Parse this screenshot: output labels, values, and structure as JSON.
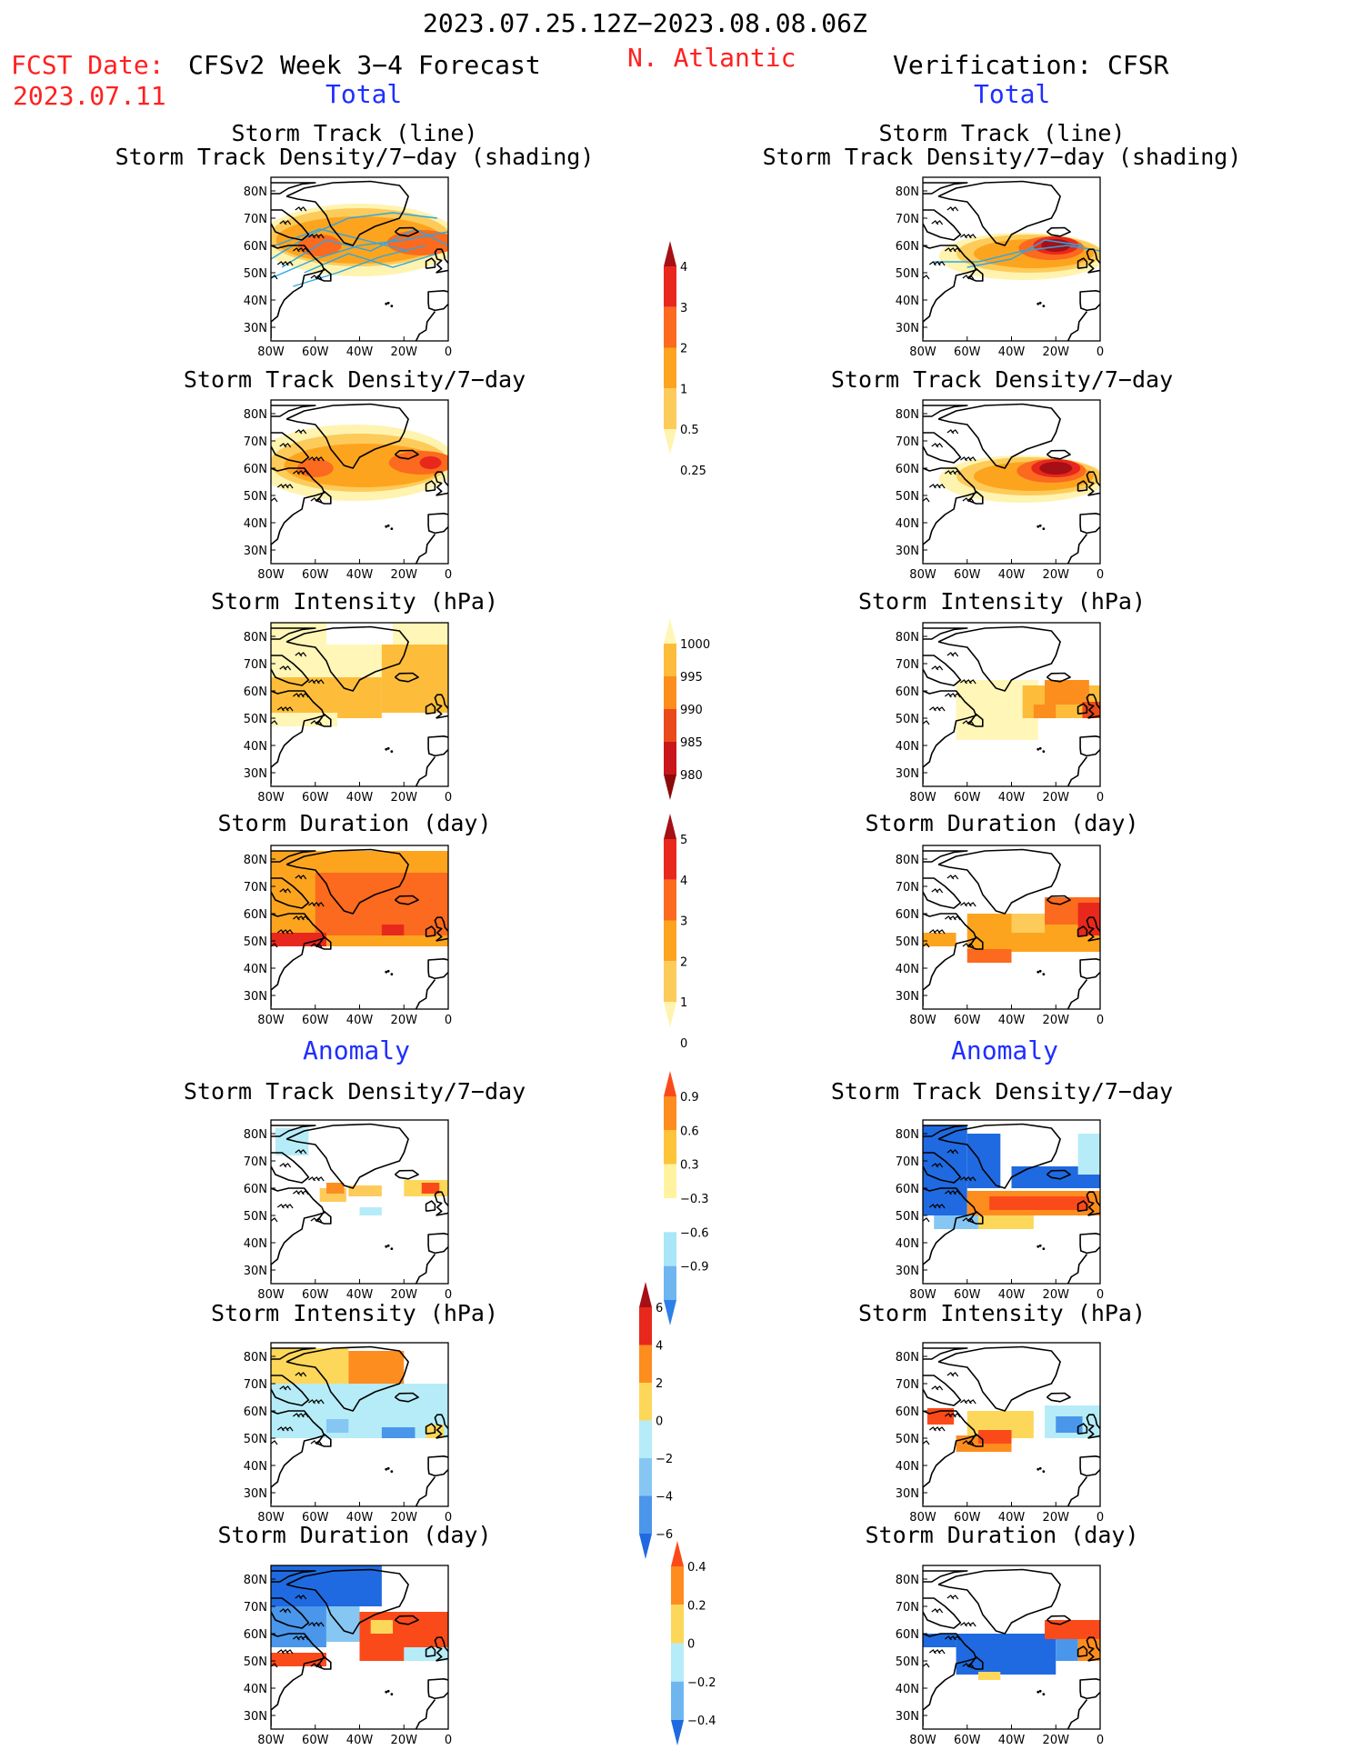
{
  "header": {
    "period": "2023.07.25.12Z−2023.08.08.06Z",
    "fcst_label": "FCST Date:",
    "fcst_date": "2023.07.11",
    "model": "CFSv2 Week 3−4 Forecast",
    "region": "N. Atlantic",
    "verification": "Verification: CFSR",
    "total_left": "Total",
    "total_right": "Total",
    "anomaly_left": "Anomaly",
    "anomaly_right": "Anomaly"
  },
  "titles": {
    "track_line": "Storm Track (line)",
    "track_shading": "Storm Track Density/7−day (shading)",
    "density": "Storm Track Density/7−day",
    "intensity": "Storm Intensity (hPa)",
    "duration": "Storm Duration (day)"
  },
  "axes": {
    "lon_labels": [
      "80W",
      "60W",
      "40W",
      "20W",
      "0"
    ],
    "lat_labels": [
      "80N",
      "70N",
      "60N",
      "50N",
      "40N",
      "30N"
    ]
  },
  "colorbars": [
    {
      "labels": [
        "4",
        "3",
        "2",
        "1",
        "0.5",
        "0.25"
      ],
      "colors": [
        "#a50f15",
        "#e8281c",
        "#fb6a1e",
        "#fda41f",
        "#fdcb5a",
        "#fff3b0"
      ]
    },
    {
      "labels": [
        "1000",
        "995",
        "990",
        "985",
        "980"
      ],
      "colors": [
        "#fff6b8",
        "#fdbd3a",
        "#fb8e1c",
        "#ea4a1a",
        "#c8161a",
        "#8c0a0a"
      ]
    },
    {
      "labels": [
        "5",
        "4",
        "3",
        "2",
        "1",
        "0"
      ],
      "colors": [
        "#a50f15",
        "#e8281c",
        "#fb6a1e",
        "#fda41f",
        "#fdcb5a",
        "#fff3b0"
      ]
    },
    {
      "labels": [
        "0.9",
        "0.6",
        "0.3",
        "−0.3",
        "−0.6",
        "−0.9"
      ],
      "colors": [
        "#fb4a1a",
        "#fd8d1f",
        "#fdc43a",
        "#fff3a0",
        "#ffffff",
        "#a9e6f7",
        "#6fb6f0",
        "#2c80e8"
      ]
    },
    {
      "labels": [
        "6",
        "4",
        "2",
        "0",
        "−2",
        "−4",
        "−6"
      ],
      "colors": [
        "#a50f15",
        "#e8281c",
        "#fd8d1f",
        "#fdd75a",
        "#b6ecf7",
        "#86c6f3",
        "#4a96ea",
        "#1f6ae0"
      ]
    },
    {
      "labels": [
        "0.4",
        "0.2",
        "0",
        "−0.2",
        "−0.4"
      ],
      "colors": [
        "#fb4a1a",
        "#fd8d1f",
        "#fdd75a",
        "#b6ecf7",
        "#6fb6f0",
        "#1f6ae0"
      ]
    }
  ],
  "chart_data": [
    {
      "type": "heatmap",
      "panel": "forecast-total-track-density-with-tracks",
      "title": "Storm Track (line) / Storm Track Density/7−day (shading)",
      "colorbar": [
        "0.25",
        "0.5",
        "1",
        "2",
        "3",
        "4"
      ]
    },
    {
      "type": "heatmap",
      "panel": "verification-total-track-density-with-tracks",
      "title": "Storm Track (line) / Storm Track Density/7−day (shading)",
      "colorbar": [
        "0.25",
        "0.5",
        "1",
        "2",
        "3",
        "4"
      ]
    },
    {
      "type": "heatmap",
      "panel": "forecast-total-density",
      "title": "Storm Track Density/7−day",
      "colorbar": [
        "0.25",
        "0.5",
        "1",
        "2",
        "3",
        "4"
      ]
    },
    {
      "type": "heatmap",
      "panel": "verification-total-density",
      "title": "Storm Track Density/7−day",
      "colorbar": [
        "0.25",
        "0.5",
        "1",
        "2",
        "3",
        "4"
      ]
    },
    {
      "type": "heatmap",
      "panel": "forecast-total-intensity",
      "title": "Storm Intensity (hPa)",
      "colorbar": [
        "1000",
        "995",
        "990",
        "985",
        "980"
      ]
    },
    {
      "type": "heatmap",
      "panel": "verification-total-intensity",
      "title": "Storm Intensity (hPa)",
      "colorbar": [
        "1000",
        "995",
        "990",
        "985",
        "980"
      ]
    },
    {
      "type": "heatmap",
      "panel": "forecast-total-duration",
      "title": "Storm Duration (day)",
      "colorbar": [
        "0",
        "1",
        "2",
        "3",
        "4",
        "5"
      ]
    },
    {
      "type": "heatmap",
      "panel": "verification-total-duration",
      "title": "Storm Duration (day)",
      "colorbar": [
        "0",
        "1",
        "2",
        "3",
        "4",
        "5"
      ]
    },
    {
      "type": "heatmap",
      "panel": "forecast-anomaly-density",
      "title": "Storm Track Density/7−day",
      "colorbar": [
        "−0.9",
        "−0.6",
        "−0.3",
        "0.3",
        "0.6",
        "0.9"
      ]
    },
    {
      "type": "heatmap",
      "panel": "verification-anomaly-density",
      "title": "Storm Track Density/7−day",
      "colorbar": [
        "−0.9",
        "−0.6",
        "−0.3",
        "0.3",
        "0.6",
        "0.9"
      ]
    },
    {
      "type": "heatmap",
      "panel": "forecast-anomaly-intensity",
      "title": "Storm Intensity (hPa)",
      "colorbar": [
        "−6",
        "−4",
        "−2",
        "0",
        "2",
        "4",
        "6"
      ]
    },
    {
      "type": "heatmap",
      "panel": "verification-anomaly-intensity",
      "title": "Storm Intensity (hPa)",
      "colorbar": [
        "−6",
        "−4",
        "−2",
        "0",
        "2",
        "4",
        "6"
      ]
    },
    {
      "type": "heatmap",
      "panel": "forecast-anomaly-duration",
      "title": "Storm Duration (day)",
      "colorbar": [
        "−0.4",
        "−0.2",
        "0",
        "0.2",
        "0.4"
      ]
    },
    {
      "type": "heatmap",
      "panel": "verification-anomaly-duration",
      "title": "Storm Duration (day)",
      "colorbar": [
        "−0.4",
        "−0.2",
        "0",
        "0.2",
        "0.4"
      ]
    }
  ]
}
